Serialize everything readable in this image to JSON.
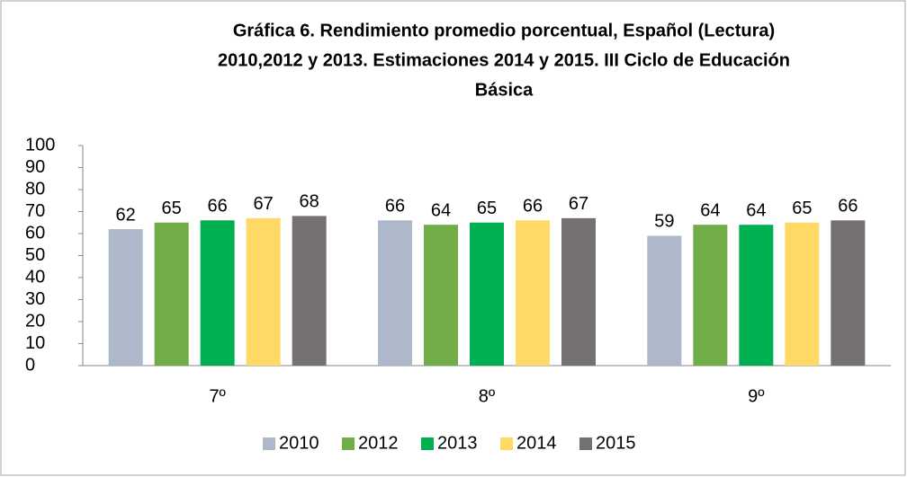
{
  "chart_data": {
    "type": "bar",
    "title": [
      "Gráfica 6. Rendimiento promedio porcentual, Español (Lectura)",
      "2010,2012 y 2013. Estimaciones 2014 y 2015. III Ciclo de Educación",
      "Básica"
    ],
    "categories": [
      "7º",
      "8º",
      "9º"
    ],
    "series": [
      {
        "name": "2010",
        "color": "#adb9ca",
        "values": [
          62,
          66,
          59
        ]
      },
      {
        "name": "2012",
        "color": "#70ad47",
        "values": [
          65,
          64,
          64
        ]
      },
      {
        "name": "2013",
        "color": "#00b050",
        "values": [
          66,
          65,
          64
        ]
      },
      {
        "name": "2014",
        "color": "#ffd966",
        "values": [
          67,
          66,
          65
        ]
      },
      {
        "name": "2015",
        "color": "#767171",
        "values": [
          68,
          67,
          66
        ]
      }
    ],
    "ylim": [
      0,
      100
    ],
    "yticks": [
      0,
      10,
      20,
      30,
      40,
      50,
      60,
      70,
      80,
      90,
      100
    ],
    "grid": false,
    "legend": "bottom"
  }
}
